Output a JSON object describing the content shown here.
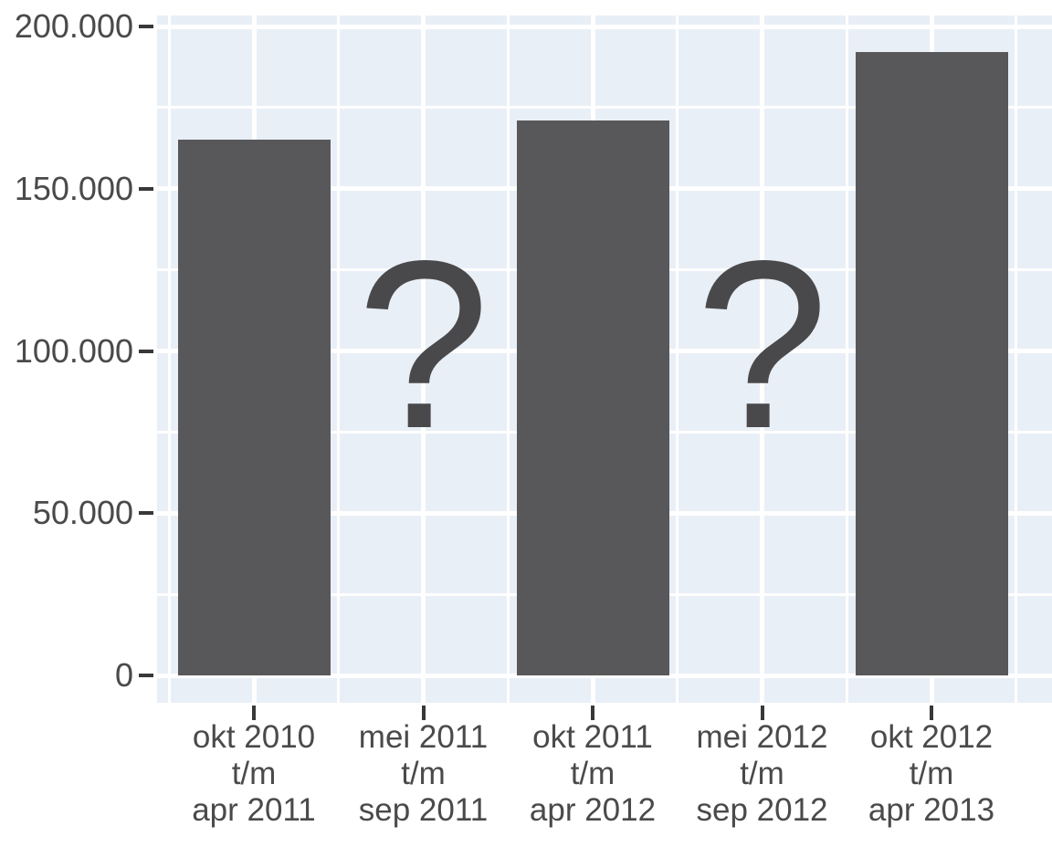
{
  "chart_data": {
    "type": "bar",
    "title": "",
    "xlabel": "",
    "ylabel": "",
    "categories": [
      "okt 2010 t/m apr 2011",
      "mei 2011 t/m sep 2011",
      "okt 2011 t/m apr 2012",
      "mei 2012 t/m sep 2012",
      "okt 2012 t/m apr 2013"
    ],
    "category_label_lines": [
      [
        "okt 2010",
        "t/m",
        "apr 2011"
      ],
      [
        "mei 2011",
        "t/m",
        "sep 2011"
      ],
      [
        "okt 2011",
        "t/m",
        "apr 2012"
      ],
      [
        "mei 2012",
        "t/m",
        "sep 2012"
      ],
      [
        "okt 2012",
        "t/m",
        "apr 2013"
      ]
    ],
    "values": [
      165000,
      null,
      171000,
      null,
      192000
    ],
    "missing_indices": [
      1,
      3
    ],
    "missing_value_marker": "?",
    "yticks": [
      0,
      50000,
      100000,
      150000,
      200000
    ],
    "ytick_labels": [
      "0",
      "50.000",
      "100.000",
      "150.000",
      "200.000"
    ],
    "ylim": [
      0,
      200000
    ],
    "minor_grid_interval": 25000,
    "legend": "none",
    "grid": "white major and minor gridlines, horizontal and vertical, on light blue panel",
    "colors": {
      "bar": "#58585a",
      "panel_background": "#e9eff6",
      "gridline": "#ffffff",
      "axis_text": "#4a4a4a",
      "tick_mark": "#383838",
      "question_mark": "#49494b",
      "outer_background": "#ffffff"
    }
  }
}
